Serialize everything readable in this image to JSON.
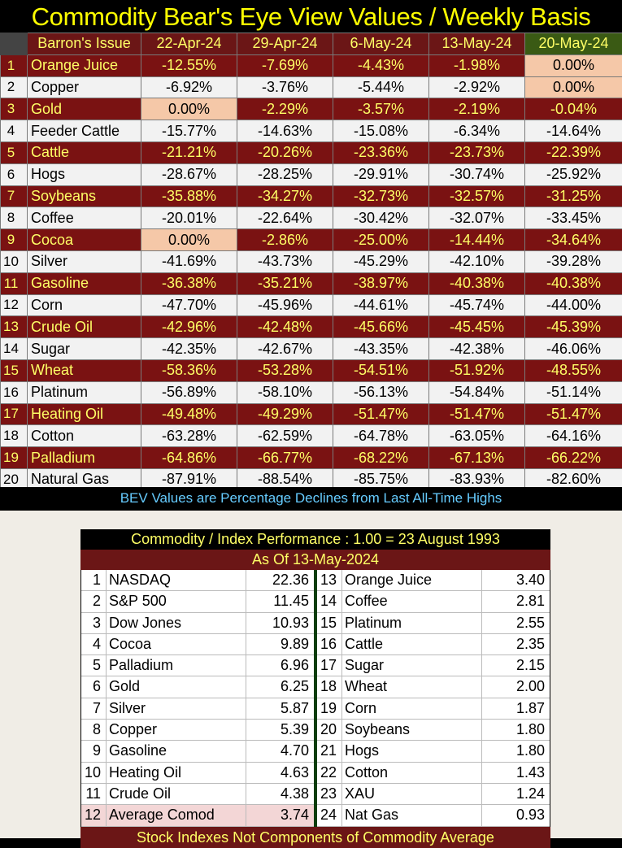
{
  "title": "Commodity Bear's Eye View Values / Weekly Basis",
  "bev_table": {
    "header": "Barron's Issue",
    "dates": [
      "22-Apr-24",
      "29-Apr-24",
      "6-May-24",
      "13-May-24",
      "20-May-24"
    ],
    "rows": [
      {
        "rank": "1",
        "name": "Orange Juice",
        "values": [
          "-12.55%",
          "-7.69%",
          "-4.43%",
          "-1.98%",
          "0.00%"
        ]
      },
      {
        "rank": "2",
        "name": "Copper",
        "values": [
          "-6.92%",
          "-3.76%",
          "-5.44%",
          "-2.92%",
          "0.00%"
        ]
      },
      {
        "rank": "3",
        "name": "Gold",
        "values": [
          "0.00%",
          "-2.29%",
          "-3.57%",
          "-2.19%",
          "-0.04%"
        ]
      },
      {
        "rank": "4",
        "name": "Feeder Cattle",
        "values": [
          "-15.77%",
          "-14.63%",
          "-15.08%",
          "-6.34%",
          "-14.64%"
        ]
      },
      {
        "rank": "5",
        "name": "Cattle",
        "values": [
          "-21.21%",
          "-20.26%",
          "-23.36%",
          "-23.73%",
          "-22.39%"
        ]
      },
      {
        "rank": "6",
        "name": "Hogs",
        "values": [
          "-28.67%",
          "-28.25%",
          "-29.91%",
          "-30.74%",
          "-25.92%"
        ]
      },
      {
        "rank": "7",
        "name": "Soybeans",
        "values": [
          "-35.88%",
          "-34.27%",
          "-32.73%",
          "-32.57%",
          "-31.25%"
        ]
      },
      {
        "rank": "8",
        "name": "Coffee",
        "values": [
          "-20.01%",
          "-22.64%",
          "-30.42%",
          "-32.07%",
          "-33.45%"
        ]
      },
      {
        "rank": "9",
        "name": "Cocoa",
        "values": [
          "0.00%",
          "-2.86%",
          "-25.00%",
          "-14.44%",
          "-34.64%"
        ]
      },
      {
        "rank": "10",
        "name": "Silver",
        "values": [
          "-41.69%",
          "-43.73%",
          "-45.29%",
          "-42.10%",
          "-39.28%"
        ]
      },
      {
        "rank": "11",
        "name": "Gasoline",
        "values": [
          "-36.38%",
          "-35.21%",
          "-38.97%",
          "-40.38%",
          "-40.38%"
        ]
      },
      {
        "rank": "12",
        "name": "Corn",
        "values": [
          "-47.70%",
          "-45.96%",
          "-44.61%",
          "-45.74%",
          "-44.00%"
        ]
      },
      {
        "rank": "13",
        "name": "Crude Oil",
        "values": [
          "-42.96%",
          "-42.48%",
          "-45.66%",
          "-45.45%",
          "-45.39%"
        ]
      },
      {
        "rank": "14",
        "name": "Sugar",
        "values": [
          "-42.35%",
          "-42.67%",
          "-43.35%",
          "-42.38%",
          "-46.06%"
        ]
      },
      {
        "rank": "15",
        "name": "Wheat",
        "values": [
          "-58.36%",
          "-53.28%",
          "-54.51%",
          "-51.92%",
          "-48.55%"
        ]
      },
      {
        "rank": "16",
        "name": "Platinum",
        "values": [
          "-56.89%",
          "-58.10%",
          "-56.13%",
          "-54.84%",
          "-51.14%"
        ]
      },
      {
        "rank": "17",
        "name": "Heating Oil",
        "values": [
          "-49.48%",
          "-49.29%",
          "-51.47%",
          "-51.47%",
          "-51.47%"
        ]
      },
      {
        "rank": "18",
        "name": "Cotton",
        "values": [
          "-63.28%",
          "-62.59%",
          "-64.78%",
          "-63.05%",
          "-64.16%"
        ]
      },
      {
        "rank": "19",
        "name": "Palladium",
        "values": [
          "-64.86%",
          "-66.77%",
          "-68.22%",
          "-67.13%",
          "-66.22%"
        ]
      },
      {
        "rank": "20",
        "name": "Natural Gas",
        "values": [
          "-87.91%",
          "-88.54%",
          "-85.75%",
          "-83.93%",
          "-82.60%"
        ]
      }
    ],
    "footnote": "BEV Values are Percentage Declines from Last All-Time Highs"
  },
  "performance": {
    "title": "Commodity / Index Performance : 1.00 = 23 August 1993",
    "as_of": "As Of    13-May-2024",
    "left": [
      {
        "rank": "1",
        "name": "NASDAQ",
        "value": "22.36"
      },
      {
        "rank": "2",
        "name": "S&P 500",
        "value": "11.45"
      },
      {
        "rank": "3",
        "name": "Dow Jones",
        "value": "10.93"
      },
      {
        "rank": "4",
        "name": "Cocoa",
        "value": "9.89"
      },
      {
        "rank": "5",
        "name": "Palladium",
        "value": "6.96"
      },
      {
        "rank": "6",
        "name": "Gold",
        "value": "6.25"
      },
      {
        "rank": "7",
        "name": "Silver",
        "value": "5.87"
      },
      {
        "rank": "8",
        "name": "Copper",
        "value": "5.39"
      },
      {
        "rank": "9",
        "name": "Gasoline",
        "value": "4.70"
      },
      {
        "rank": "10",
        "name": "Heating Oil",
        "value": "4.63"
      },
      {
        "rank": "11",
        "name": "Crude Oil",
        "value": "4.38"
      },
      {
        "rank": "12",
        "name": "Average Comod",
        "value": "3.74"
      }
    ],
    "right": [
      {
        "rank": "13",
        "name": "Orange Juice",
        "value": "3.40"
      },
      {
        "rank": "14",
        "name": "Coffee",
        "value": "2.81"
      },
      {
        "rank": "15",
        "name": "Platinum",
        "value": "2.55"
      },
      {
        "rank": "16",
        "name": "Cattle",
        "value": "2.35"
      },
      {
        "rank": "17",
        "name": "Sugar",
        "value": "2.15"
      },
      {
        "rank": "18",
        "name": "Wheat",
        "value": "2.00"
      },
      {
        "rank": "19",
        "name": "Corn",
        "value": "1.87"
      },
      {
        "rank": "20",
        "name": "Soybeans",
        "value": "1.80"
      },
      {
        "rank": "21",
        "name": "Hogs",
        "value": "1.80"
      },
      {
        "rank": "22",
        "name": "Cotton",
        "value": "1.43"
      },
      {
        "rank": "23",
        "name": "XAU",
        "value": "1.24"
      },
      {
        "rank": "24",
        "name": "Nat Gas",
        "value": "0.93"
      }
    ],
    "footnote": "Stock Indexes Not Components of Commodity Average"
  }
}
